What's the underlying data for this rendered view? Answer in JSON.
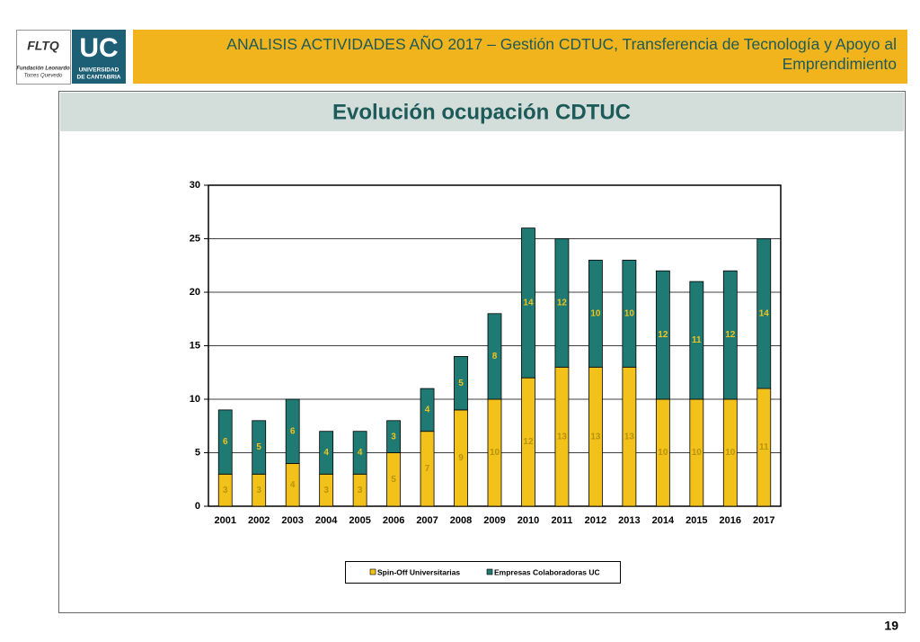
{
  "header": {
    "title": "ANALISIS ACTIVIDADES AÑO 2017 – Gestión CDTUC, Transferencia de Tecnología y Apoyo al Emprendimiento",
    "logo_left": [
      "FLTQ",
      "Fundación Leonardo",
      "Torres Quevedo"
    ],
    "logo_right": [
      "UC",
      "UNIVERSIDAD",
      "DE CANTABRIA"
    ]
  },
  "page_number": "19",
  "chart_data": {
    "type": "stacked_bar",
    "title": "Evolución ocupación CDTUC",
    "categories": [
      "2001",
      "2002",
      "2003",
      "2004",
      "2005",
      "2006",
      "2007",
      "2008",
      "2009",
      "2010",
      "2011",
      "2012",
      "2013",
      "2014",
      "2015",
      "2016",
      "2017"
    ],
    "series": [
      {
        "name": "Spin-Off Universitarias",
        "color": "#f2c21b",
        "label_color": "#b8930c",
        "values": [
          3,
          3,
          4,
          3,
          3,
          5,
          7,
          9,
          10,
          12,
          13,
          13,
          13,
          10,
          10,
          10,
          11
        ]
      },
      {
        "name": "Empresas Colaboradoras UC",
        "color": "#1f7a74",
        "label_color": "#f2c21b",
        "values": [
          6,
          5,
          6,
          4,
          4,
          3,
          4,
          5,
          8,
          14,
          12,
          10,
          10,
          12,
          11,
          12,
          14
        ]
      }
    ],
    "ylim": [
      0,
      30
    ],
    "yticks": [
      0,
      5,
      10,
      15,
      20,
      25,
      30
    ],
    "grid": true,
    "legend": "bottom"
  }
}
